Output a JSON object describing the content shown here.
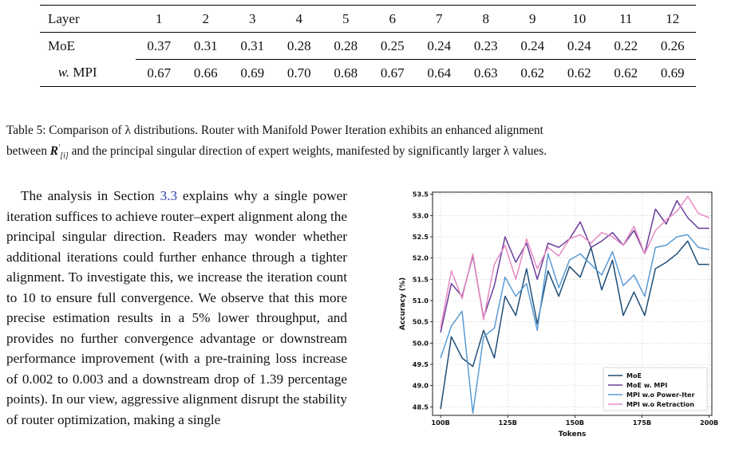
{
  "table": {
    "header": [
      "Layer",
      "1",
      "2",
      "3",
      "4",
      "5",
      "6",
      "7",
      "8",
      "9",
      "10",
      "11",
      "12"
    ],
    "rows": [
      {
        "label": "MoE",
        "values": [
          "0.37",
          "0.31",
          "0.31",
          "0.28",
          "0.28",
          "0.25",
          "0.24",
          "0.23",
          "0.24",
          "0.24",
          "0.22",
          "0.26"
        ]
      },
      {
        "label_prefix": "w.",
        "label": "MPI",
        "values": [
          "0.67",
          "0.66",
          "0.69",
          "0.70",
          "0.68",
          "0.67",
          "0.64",
          "0.63",
          "0.62",
          "0.62",
          "0.62",
          "0.69"
        ]
      }
    ]
  },
  "caption": {
    "line1": "Table 5: Comparison of λ distributions. Router with Manifold Power Iteration exhibits an enhanced alignment",
    "line2_a": "between",
    "line2_b": "and the principal singular direction of expert weights, manifested by significantly larger λ values."
  },
  "paragraph": {
    "before_ref": "The analysis in Section ",
    "ref": "3.3",
    "after_ref": " explains why a single power iteration suffices to achieve router–expert alignment along the principal singular direction. Readers may wonder whether additional iterations could further enhance through a tighter alignment. To investigate this, we increase the iteration count to 10 to ensure full convergence. We observe that this more precise estimation results in a 5% lower throughput, and provides no further convergence advantage or downstream performance improvement (with a pre-training loss increase of 0.002 to 0.003 and a downstream drop of 1.39 percentage points). In our view, aggressive alignment disrupt the stability of router optimization, making a single"
  },
  "chart_data": {
    "type": "line",
    "xlabel": "Tokens",
    "ylabel": "Accuracy (%)",
    "xlim": [
      97,
      201
    ],
    "ylim": [
      48.3,
      53.55
    ],
    "x_ticks": [
      100,
      125,
      150,
      175,
      200
    ],
    "x_tick_labels": [
      "100B",
      "125B",
      "150B",
      "175B",
      "200B"
    ],
    "y_ticks": [
      48.5,
      49.0,
      49.5,
      50.0,
      50.5,
      51.0,
      51.5,
      52.0,
      52.5,
      53.0,
      53.5
    ],
    "y_tick_labels": [
      "48.5",
      "49.0",
      "49.5",
      "50.0",
      "50.5",
      "51.0",
      "51.5",
      "52.0",
      "52.5",
      "53.0",
      "53.5"
    ],
    "grid": true,
    "legend_position": "lower-right",
    "x": [
      100,
      104,
      108,
      112,
      116,
      120,
      124,
      128,
      132,
      136,
      140,
      144,
      148,
      152,
      156,
      160,
      164,
      168,
      172,
      176,
      180,
      184,
      188,
      192,
      196,
      200
    ],
    "series": [
      {
        "name": "MoE",
        "color": "#1f4e79",
        "values": [
          48.45,
          50.15,
          49.65,
          49.45,
          50.3,
          49.65,
          51.1,
          50.65,
          51.75,
          50.45,
          51.7,
          51.1,
          51.8,
          51.55,
          52.25,
          51.25,
          51.95,
          50.65,
          51.2,
          50.65,
          51.75,
          51.9,
          52.1,
          52.4,
          51.85,
          51.85
        ]
      },
      {
        "name": "MoE w. MPI",
        "color": "#6a3d9a",
        "values": [
          50.25,
          51.4,
          51.1,
          52.05,
          50.6,
          51.35,
          52.5,
          51.9,
          52.35,
          51.5,
          52.35,
          52.25,
          52.45,
          52.85,
          52.25,
          52.4,
          52.6,
          52.3,
          52.65,
          52.1,
          53.15,
          52.8,
          53.35,
          52.95,
          52.7,
          52.7
        ]
      },
      {
        "name": "MPI w.o Power-Iter",
        "color": "#5b9bd5",
        "values": [
          49.65,
          50.4,
          50.75,
          48.35,
          50.15,
          50.35,
          51.55,
          51.1,
          51.4,
          50.3,
          52.1,
          51.3,
          51.95,
          52.1,
          51.85,
          51.6,
          52.15,
          51.35,
          51.6,
          51.1,
          52.25,
          52.3,
          52.5,
          52.55,
          52.25,
          52.2
        ]
      },
      {
        "name": "MPI w.o Retraction",
        "color": "#e78ac3",
        "values": [
          50.35,
          51.7,
          51.05,
          52.1,
          50.55,
          51.85,
          52.3,
          51.5,
          52.45,
          51.75,
          52.25,
          52.05,
          52.45,
          52.55,
          52.35,
          52.6,
          52.5,
          52.3,
          52.75,
          52.1,
          52.65,
          52.9,
          53.1,
          53.45,
          53.05,
          52.95
        ]
      }
    ]
  }
}
